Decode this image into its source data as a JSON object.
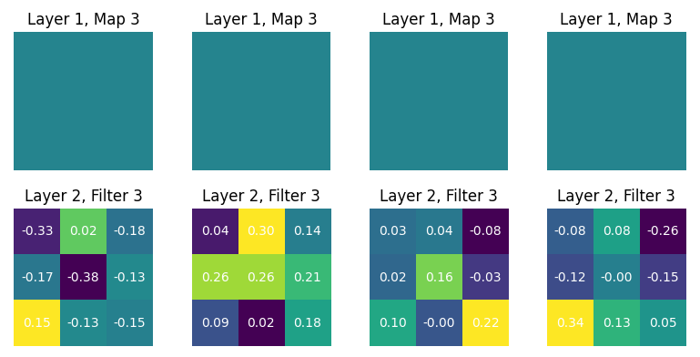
{
  "chart_data": [
    {
      "type": "image",
      "title": "Layer 1, Map 3",
      "tick_labels": false
    },
    {
      "type": "image",
      "title": "Layer 1, Map 3",
      "tick_labels": false
    },
    {
      "type": "image",
      "title": "Layer 1, Map 3",
      "tick_labels": false
    },
    {
      "type": "image",
      "title": "Layer 1, Map 3",
      "tick_labels": false
    },
    {
      "type": "heatmap",
      "title": "Layer 2, Filter 3",
      "color": "viridis",
      "tick_labels": false,
      "data_labels": true,
      "cells": [
        [
          -0.33,
          0.02,
          -0.18
        ],
        [
          -0.17,
          -0.38,
          -0.13
        ],
        [
          0.15,
          -0.13,
          -0.15
        ]
      ],
      "value_labels": [
        [
          "-0.33",
          "0.02",
          "-0.18"
        ],
        [
          "-0.17",
          "-0.38",
          "-0.13"
        ],
        [
          "0.15",
          "-0.13",
          "-0.15"
        ]
      ]
    },
    {
      "type": "heatmap",
      "title": "Layer 2, Filter 3",
      "color": "viridis",
      "tick_labels": false,
      "data_labels": true,
      "cells": [
        [
          0.04,
          0.3,
          0.14
        ],
        [
          0.26,
          0.26,
          0.21
        ],
        [
          0.09,
          0.02,
          0.18
        ]
      ],
      "value_labels": [
        [
          "0.04",
          "0.30",
          "0.14"
        ],
        [
          "0.26",
          "0.26",
          "0.21"
        ],
        [
          "0.09",
          "0.02",
          "0.18"
        ]
      ]
    },
    {
      "type": "heatmap",
      "title": "Layer 2, Filter 3",
      "color": "viridis",
      "tick_labels": false,
      "data_labels": true,
      "cells": [
        [
          0.03,
          0.04,
          -0.08
        ],
        [
          0.02,
          0.16,
          -0.03
        ],
        [
          0.1,
          -0.0,
          0.22
        ]
      ],
      "value_labels": [
        [
          "0.03",
          "0.04",
          "-0.08"
        ],
        [
          "0.02",
          "0.16",
          "-0.03"
        ],
        [
          "0.10",
          "-0.00",
          "0.22"
        ]
      ]
    },
    {
      "type": "heatmap",
      "title": "Layer 2, Filter 3",
      "color": "viridis",
      "tick_labels": false,
      "data_labels": true,
      "cells": [
        [
          -0.08,
          0.08,
          -0.26
        ],
        [
          -0.12,
          -0.0,
          -0.15
        ],
        [
          0.34,
          0.13,
          0.05
        ]
      ],
      "value_labels": [
        [
          "-0.08",
          "0.08",
          "-0.26"
        ],
        [
          "-0.12",
          "-0.00",
          "-0.15"
        ],
        [
          "0.34",
          "0.13",
          "0.05"
        ]
      ]
    }
  ]
}
